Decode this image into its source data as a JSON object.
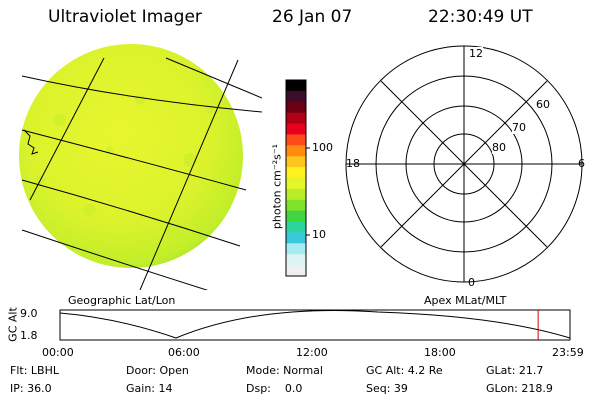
{
  "header": {
    "instrument": "Ultraviolet Imager",
    "date": "26 Jan 07",
    "time": "22:30:49 UT"
  },
  "colorbar": {
    "unit_label": "photon cm⁻²s⁻¹",
    "tick_labels": [
      "100",
      "10"
    ],
    "colors": [
      "#000000",
      "#3a0d2a",
      "#6a0010",
      "#b00014",
      "#e8001e",
      "#ff4a1a",
      "#ff8c10",
      "#ffc41e",
      "#fff020",
      "#e6f52a",
      "#b8ee28",
      "#7fe22c",
      "#3fd640",
      "#2ad49a",
      "#3cc8dc",
      "#a6ecf2",
      "#dcf4f4",
      "#f0f0f0"
    ]
  },
  "panels": {
    "geo_label": "Geographic Lat/Lon",
    "apex_label": "Apex MLat/MLT",
    "polar_mlt_labels": {
      "top": "12",
      "left": "18",
      "right": "6",
      "bottom": "0"
    },
    "polar_lat_labels": [
      "60",
      "70",
      "80"
    ]
  },
  "timeline": {
    "axis_label": "GC Alt",
    "y_labels": [
      "9.0",
      "1.8"
    ],
    "x_labels": [
      "00:00",
      "06:00",
      "12:00",
      "18:00",
      "23:59"
    ],
    "marker_time": "22:30",
    "marker_color": "#cc0000"
  },
  "info": {
    "filter": "Flt: LBHL",
    "ip": "IP: 36.0",
    "door": "Door: Open",
    "gain": "Gain: 14",
    "mode": "Mode: Normal",
    "dsp": "Dsp:    0.0",
    "gc_alt": "GC Alt: 4.2 Re",
    "seq": "Seq: 39",
    "glat": "GLat: 21.7",
    "glon": "GLon: 218.9"
  }
}
